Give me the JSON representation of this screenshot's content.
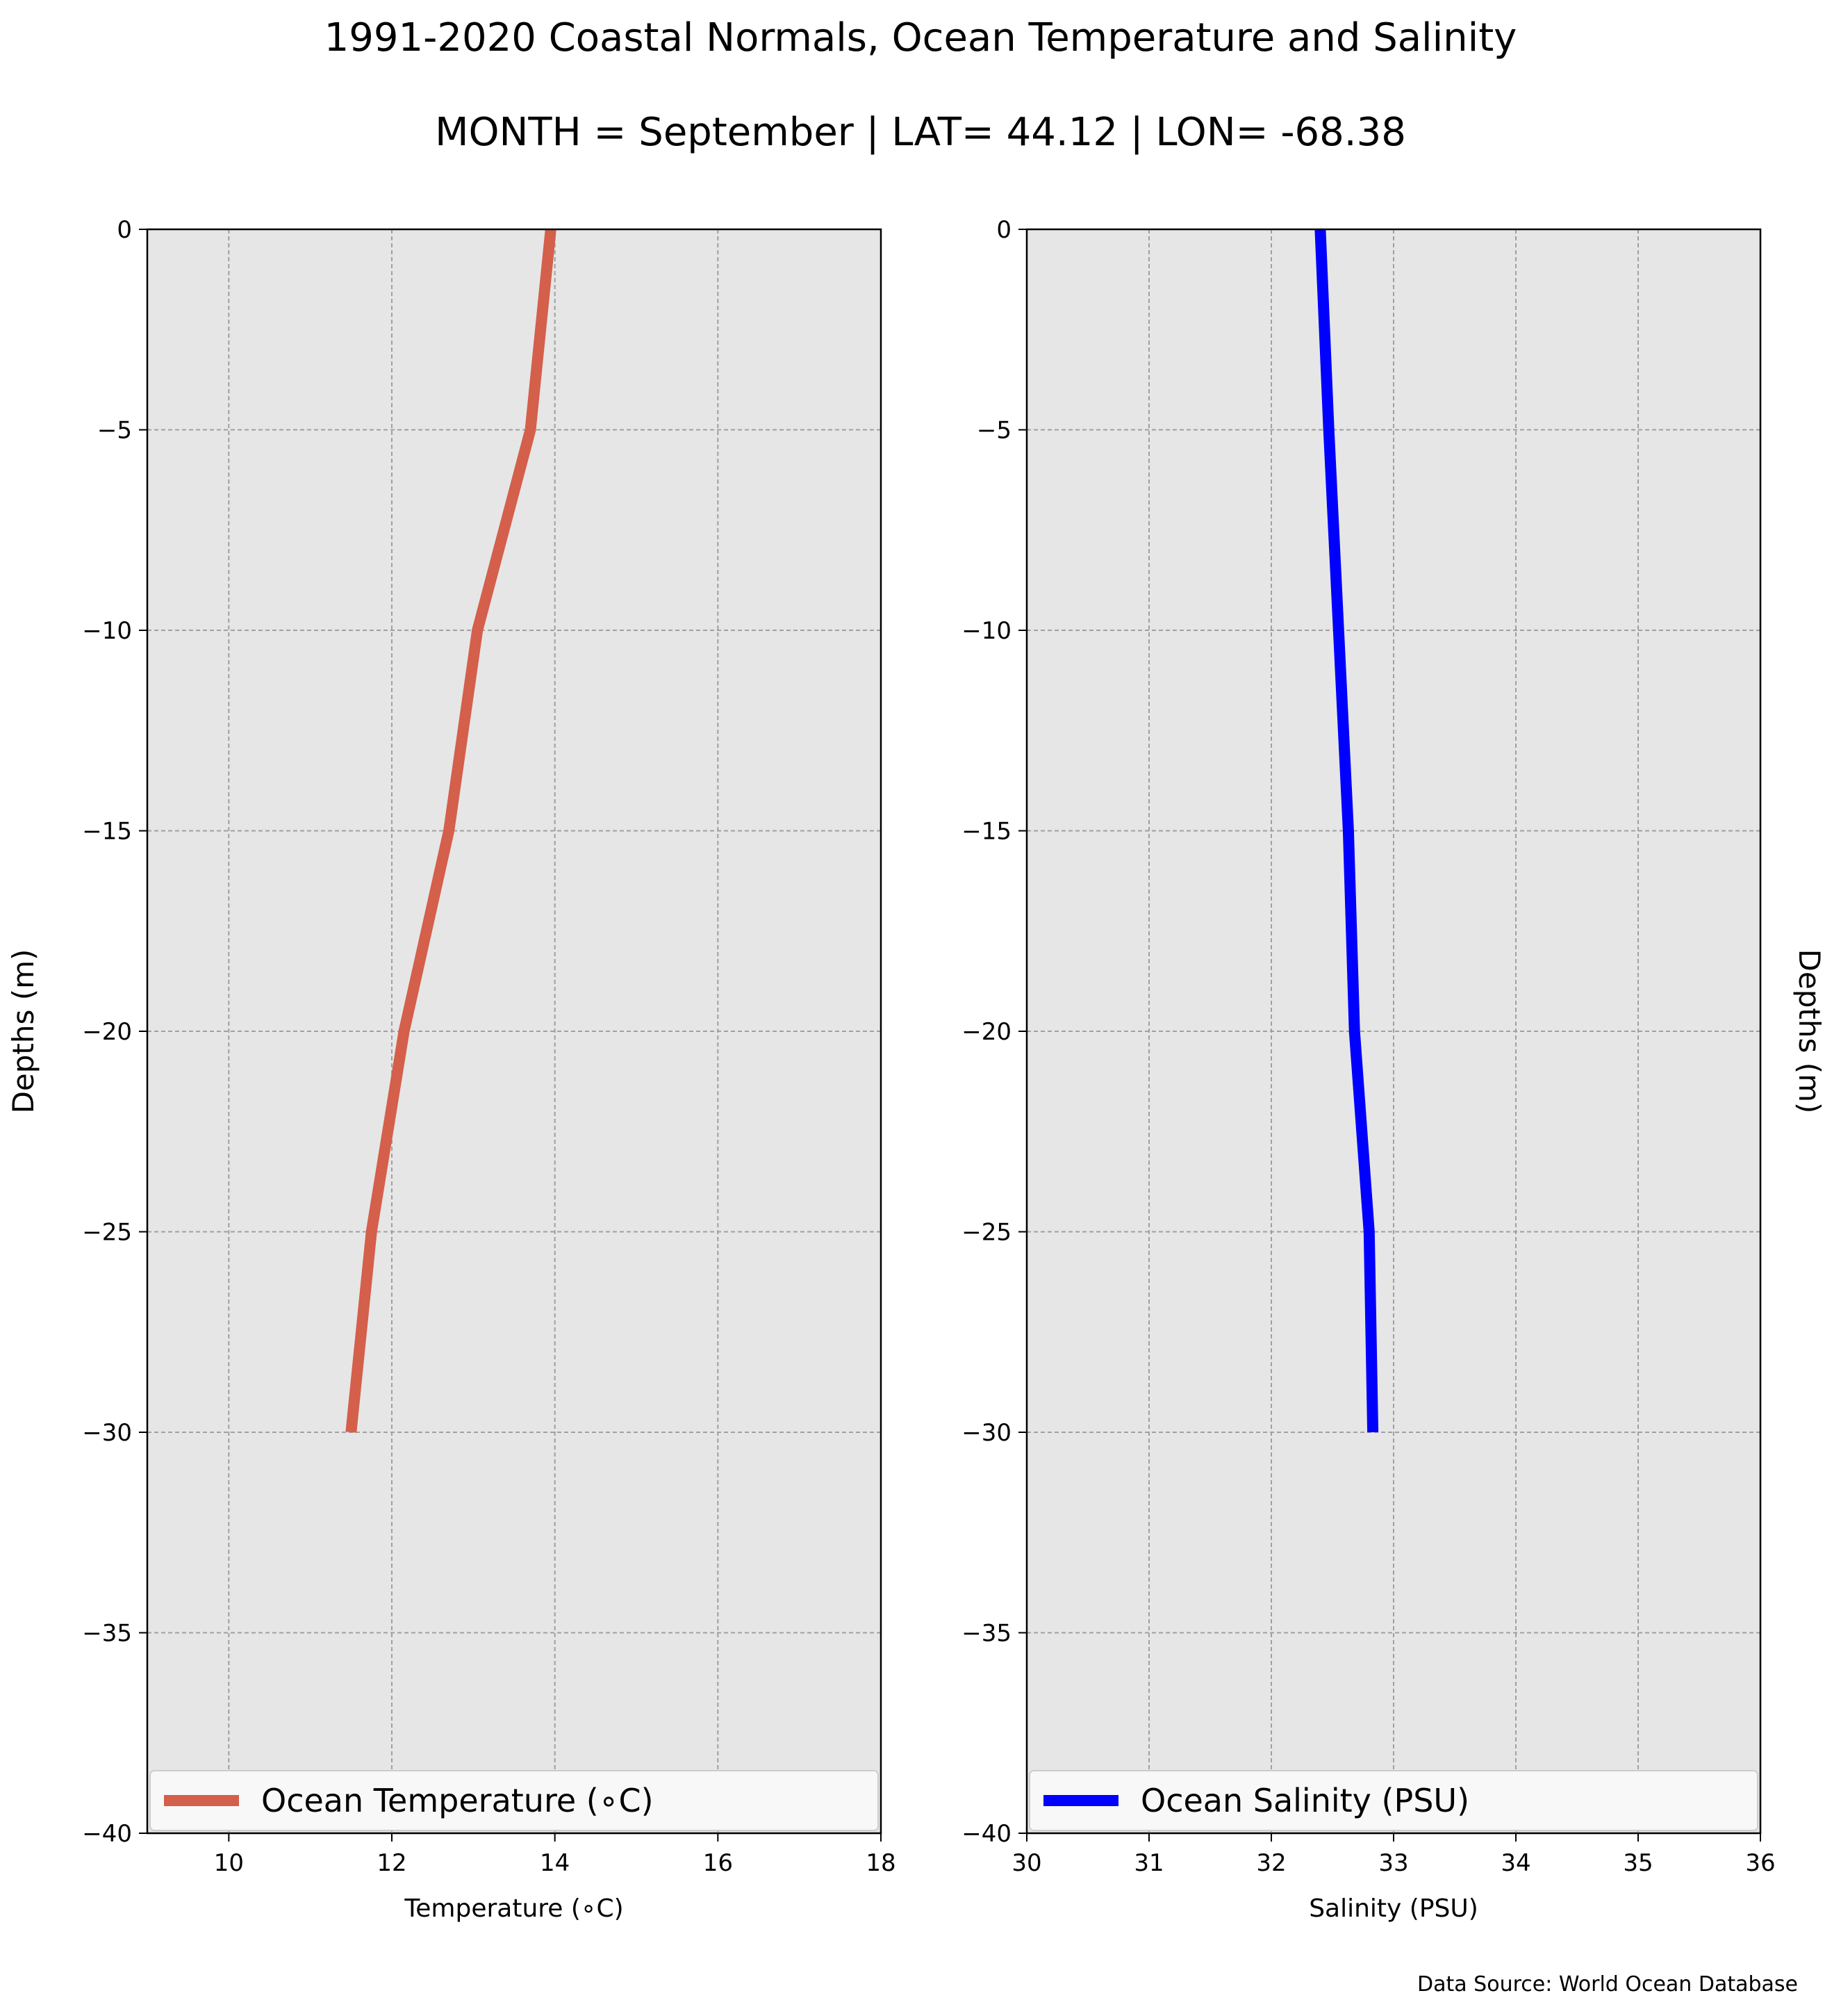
{
  "title": "1991-2020 Coastal Normals, Ocean Temperature and Salinity",
  "subtitle": "MONTH = September | LAT= 44.12 | LON= -68.38",
  "source": "Data Source: World Ocean Database",
  "chart_data": [
    {
      "type": "line",
      "xlabel": "Temperature (∘C)",
      "ylabel": "Depths (m)",
      "xlim": [
        9,
        18
      ],
      "ylim": [
        -40,
        0
      ],
      "xticks": [
        10,
        12,
        14,
        16,
        18
      ],
      "yticks": [
        0,
        -5,
        -10,
        -15,
        -20,
        -25,
        -30,
        -35,
        -40
      ],
      "grid": true,
      "legend_position": "bottom",
      "series": [
        {
          "name": "Ocean Temperature (∘C)",
          "color": "#d45f4b",
          "x": [
            13.95,
            13.7,
            13.05,
            12.7,
            12.15,
            11.75,
            11.5
          ],
          "y": [
            0,
            -5,
            -10,
            -15,
            -20,
            -25,
            -30
          ]
        }
      ]
    },
    {
      "type": "line",
      "xlabel": "Salinity (PSU)",
      "ylabel": "Depths (m)",
      "xlim": [
        30,
        36
      ],
      "ylim": [
        -40,
        0
      ],
      "xticks": [
        30,
        31,
        32,
        33,
        34,
        35,
        36
      ],
      "yticks": [
        0,
        -5,
        -10,
        -15,
        -20,
        -25,
        -30,
        -35,
        -40
      ],
      "grid": true,
      "legend_position": "bottom",
      "series": [
        {
          "name": "Ocean Salinity (PSU)",
          "color": "#0000ff",
          "x": [
            32.4,
            32.47,
            32.55,
            32.63,
            32.68,
            32.8,
            32.83
          ],
          "y": [
            0,
            -5,
            -10,
            -15,
            -20,
            -25,
            -30
          ]
        }
      ]
    }
  ]
}
